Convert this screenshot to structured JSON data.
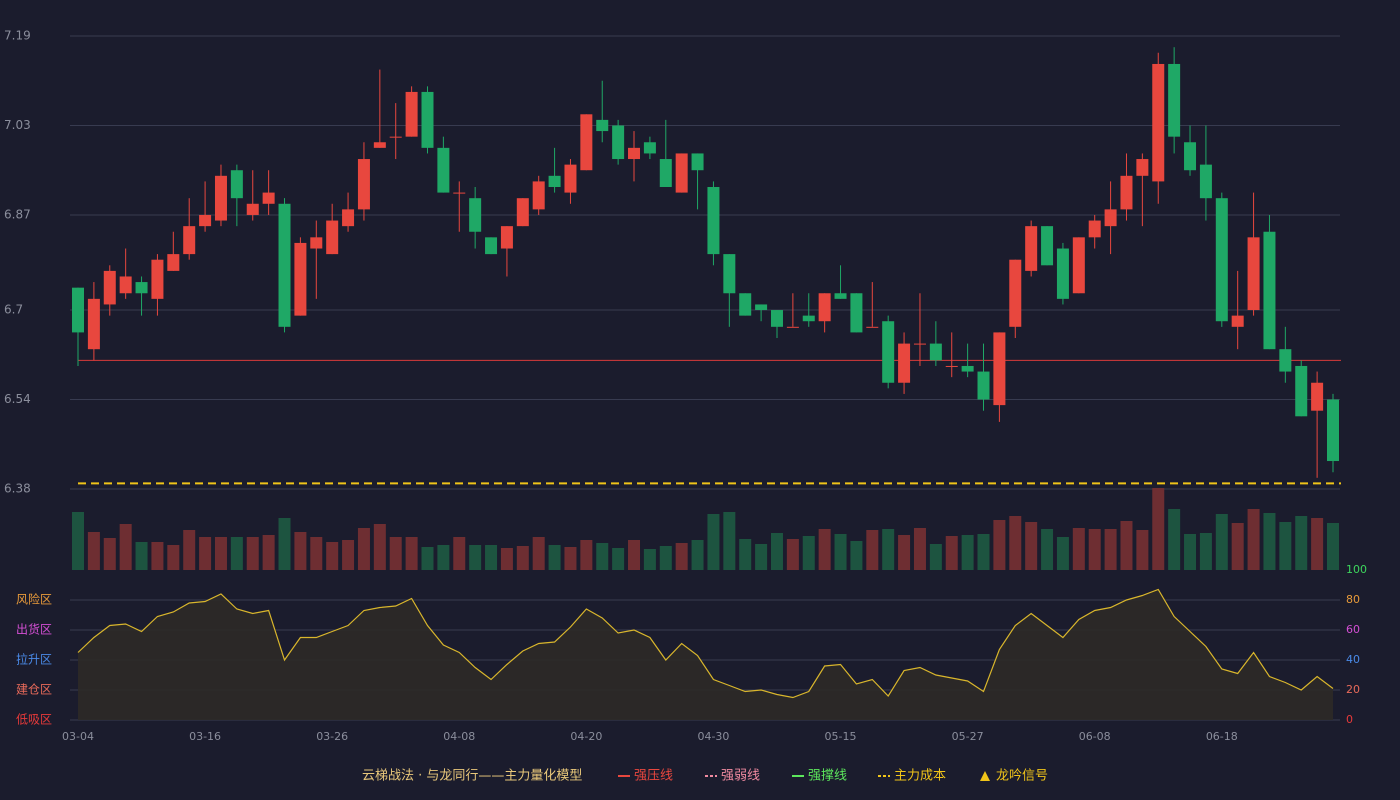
{
  "chart_data": [
    {
      "type": "candlestick",
      "categories": [
        "03-04",
        null,
        null,
        null,
        null,
        null,
        null,
        null,
        "03-16",
        null,
        null,
        null,
        null,
        null,
        null,
        null,
        "03-26",
        null,
        null,
        null,
        null,
        null,
        null,
        null,
        "04-08",
        null,
        null,
        null,
        null,
        null,
        null,
        null,
        "04-20",
        null,
        null,
        null,
        null,
        null,
        null,
        null,
        "04-30",
        null,
        null,
        null,
        null,
        null,
        null,
        null,
        "05-15",
        null,
        null,
        null,
        null,
        null,
        null,
        null,
        "05-27",
        null,
        null,
        null,
        null,
        null,
        null,
        null,
        "06-08",
        null,
        null,
        null,
        null,
        null,
        null,
        null,
        "06-18",
        null,
        null,
        null,
        null,
        null,
        null,
        null
      ],
      "open": [
        6.74,
        6.63,
        6.71,
        6.73,
        6.75,
        6.72,
        6.77,
        6.8,
        6.85,
        6.86,
        6.95,
        6.87,
        6.89,
        6.89,
        6.69,
        6.81,
        6.8,
        6.85,
        6.88,
        6.99,
        7.01,
        7.01,
        7.09,
        6.99,
        6.91,
        6.9,
        6.83,
        6.81,
        6.85,
        6.88,
        6.94,
        6.91,
        6.95,
        7.04,
        7.03,
        6.97,
        7.0,
        6.97,
        6.91,
        6.98,
        6.92,
        6.8,
        6.73,
        6.71,
        6.7,
        6.67,
        6.69,
        6.68,
        6.73,
        6.73,
        6.67,
        6.68,
        6.57,
        6.64,
        6.64,
        6.6,
        6.6,
        6.59,
        6.53,
        6.67,
        6.77,
        6.85,
        6.81,
        6.73,
        6.83,
        6.85,
        6.88,
        6.94,
        6.93,
        7.14,
        7.0,
        6.96,
        6.9,
        6.67,
        6.7,
        6.84,
        6.63,
        6.6,
        6.52,
        6.54
      ],
      "high": [
        6.74,
        6.75,
        6.78,
        6.81,
        6.76,
        6.8,
        6.84,
        6.9,
        6.93,
        6.96,
        6.96,
        6.95,
        6.95,
        6.9,
        6.83,
        6.86,
        6.89,
        6.91,
        7.0,
        7.13,
        7.07,
        7.1,
        7.1,
        7.01,
        6.93,
        6.92,
        6.83,
        6.85,
        6.9,
        6.94,
        6.99,
        6.97,
        7.05,
        7.11,
        7.04,
        7.02,
        7.01,
        7.04,
        6.98,
        6.98,
        6.93,
        6.8,
        6.73,
        6.71,
        6.7,
        6.73,
        6.73,
        6.73,
        6.78,
        6.73,
        6.75,
        6.69,
        6.66,
        6.73,
        6.68,
        6.66,
        6.64,
        6.64,
        6.66,
        6.79,
        6.86,
        6.85,
        6.82,
        6.83,
        6.87,
        6.93,
        6.98,
        6.98,
        7.16,
        7.17,
        7.03,
        7.03,
        6.91,
        6.77,
        6.91,
        6.87,
        6.67,
        6.61,
        6.59,
        6.55
      ],
      "low": [
        6.6,
        6.61,
        6.69,
        6.72,
        6.69,
        6.69,
        6.77,
        6.79,
        6.84,
        6.85,
        6.85,
        6.86,
        6.87,
        6.66,
        6.69,
        6.72,
        6.8,
        6.84,
        6.86,
        6.99,
        6.97,
        7.01,
        6.98,
        6.91,
        6.84,
        6.81,
        6.8,
        6.76,
        6.85,
        6.87,
        6.91,
        6.89,
        6.95,
        7.0,
        6.96,
        6.93,
        6.97,
        6.92,
        6.91,
        6.88,
        6.78,
        6.67,
        6.69,
        6.68,
        6.65,
        6.67,
        6.67,
        6.66,
        6.72,
        6.66,
        6.67,
        6.56,
        6.55,
        6.6,
        6.6,
        6.58,
        6.58,
        6.52,
        6.5,
        6.65,
        6.76,
        6.78,
        6.71,
        6.73,
        6.81,
        6.8,
        6.86,
        6.85,
        6.89,
        6.98,
        6.94,
        6.86,
        6.67,
        6.63,
        6.69,
        6.63,
        6.57,
        6.51,
        6.4,
        6.41
      ],
      "close": [
        6.66,
        6.72,
        6.77,
        6.76,
        6.73,
        6.79,
        6.8,
        6.85,
        6.87,
        6.94,
        6.9,
        6.89,
        6.91,
        6.67,
        6.82,
        6.83,
        6.86,
        6.88,
        6.97,
        7.0,
        7.01,
        7.09,
        6.99,
        6.91,
        6.91,
        6.84,
        6.8,
        6.85,
        6.9,
        6.93,
        6.92,
        6.96,
        7.05,
        7.02,
        6.97,
        6.99,
        6.98,
        6.92,
        6.98,
        6.95,
        6.8,
        6.73,
        6.69,
        6.7,
        6.67,
        6.67,
        6.68,
        6.73,
        6.72,
        6.66,
        6.67,
        6.57,
        6.64,
        6.64,
        6.61,
        6.6,
        6.59,
        6.54,
        6.66,
        6.79,
        6.85,
        6.78,
        6.72,
        6.83,
        6.86,
        6.88,
        6.94,
        6.97,
        7.14,
        7.01,
        6.95,
        6.9,
        6.68,
        6.69,
        6.83,
        6.63,
        6.59,
        6.51,
        6.57,
        6.43
      ],
      "up_color": "#e8473e",
      "down_color": "#1fa866",
      "ylim": [
        6.38,
        7.19
      ],
      "yticks": [
        7.19,
        7.03,
        6.87,
        6.7,
        6.54,
        6.38
      ],
      "grid": true,
      "lines": [
        {
          "name": "强压线",
          "value": 6.61,
          "color": "#d93a3a",
          "style": "solid"
        },
        {
          "name": "主力成本",
          "value": 6.39,
          "color": "#f0c419",
          "style": "dashed"
        }
      ]
    },
    {
      "type": "bar",
      "values": [
        58,
        38,
        32,
        46,
        28,
        28,
        25,
        40,
        33,
        33,
        33,
        33,
        35,
        52,
        38,
        33,
        28,
        30,
        42,
        46,
        33,
        33,
        23,
        25,
        33,
        25,
        25,
        22,
        24,
        33,
        25,
        23,
        30,
        27,
        22,
        30,
        21,
        24,
        27,
        30,
        56,
        58,
        31,
        26,
        37,
        31,
        34,
        41,
        36,
        29,
        40,
        41,
        35,
        42,
        26,
        34,
        35,
        36,
        50,
        54,
        48,
        41,
        33,
        42,
        41,
        41,
        49,
        40,
        82,
        61,
        36,
        37,
        56,
        47,
        61,
        57,
        48,
        54,
        52,
        47
      ],
      "up_color": "#6e2e32",
      "down_color": "#1d5440"
    },
    {
      "type": "area",
      "values": [
        45,
        55,
        63,
        64,
        59,
        69,
        72,
        78,
        79,
        84,
        74,
        71,
        73,
        40,
        55,
        55,
        59,
        63,
        73,
        75,
        76,
        81,
        63,
        50,
        45,
        35,
        27,
        37,
        46,
        51,
        52,
        62,
        74,
        68,
        58,
        60,
        55,
        40,
        51,
        43,
        27,
        23,
        19,
        20,
        17,
        15,
        19,
        36,
        37,
        24,
        27,
        16,
        33,
        35,
        30,
        28,
        26,
        19,
        47,
        63,
        71,
        63,
        55,
        67,
        73,
        75,
        80,
        83,
        87,
        69,
        59,
        49,
        34,
        31,
        45,
        29,
        25,
        20,
        29,
        21
      ],
      "color": "#d9b62c",
      "fill": "#2d2a27",
      "ylim": [
        0,
        100
      ],
      "yticks": [
        100,
        80,
        60,
        40,
        20,
        0
      ],
      "ytick_colors": [
        "#3cd65c",
        "#e89a3a",
        "#d44fd4",
        "#4a8ae8",
        "#e86a5a",
        "#e83a3a"
      ],
      "zones": [
        {
          "label": "风险区",
          "value": 80,
          "color": "#e89a3a"
        },
        {
          "label": "出货区",
          "value": 60,
          "color": "#d44fd4"
        },
        {
          "label": "拉升区",
          "value": 40,
          "color": "#4a8ae8"
        },
        {
          "label": "建仓区",
          "value": 20,
          "color": "#e86a5a"
        },
        {
          "label": "低吸区",
          "value": 0,
          "color": "#e83a3a"
        }
      ]
    }
  ],
  "legend": {
    "title": "云梯战法 · 与龙同行——主力量化模型",
    "items": [
      {
        "name": "强压线",
        "color": "#e8473e",
        "style": "solid"
      },
      {
        "name": "强弱线",
        "color": "#f08aa0",
        "style": "dashed"
      },
      {
        "name": "强撑线",
        "color": "#5ce65c",
        "style": "solid"
      },
      {
        "name": "主力成本",
        "color": "#f0c419",
        "style": "dashed"
      },
      {
        "name": "龙吟信号",
        "color": "#f0c419",
        "style": "triangle"
      }
    ]
  }
}
